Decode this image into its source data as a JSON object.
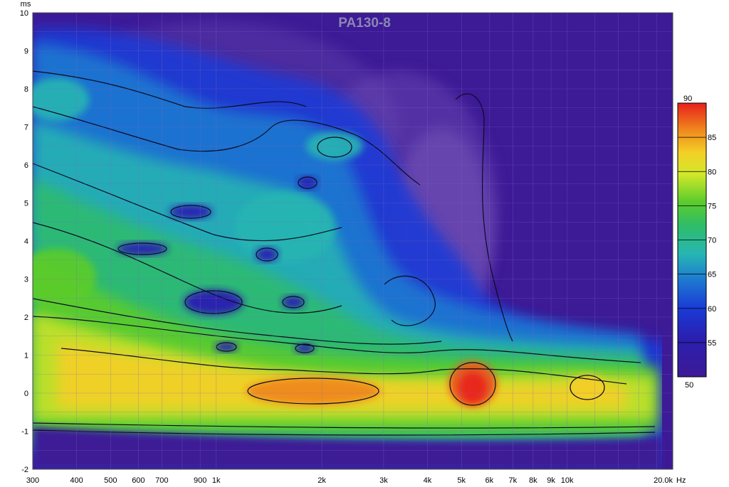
{
  "chart_data": {
    "type": "heatmap",
    "title": "PA130-8",
    "x_unit": "Hz",
    "y_unit": "ms",
    "x_scale": "log",
    "xlim": [
      300,
      20000
    ],
    "ylim": [
      -2,
      10
    ],
    "x_ticks": [
      {
        "v": 300,
        "t": "300"
      },
      {
        "v": 400,
        "t": "400"
      },
      {
        "v": 500,
        "t": "500"
      },
      {
        "v": 600,
        "t": "600"
      },
      {
        "v": 700,
        "t": "700"
      },
      {
        "v": 900,
        "t": "900"
      },
      {
        "v": 1000,
        "t": "1k"
      },
      {
        "v": 2000,
        "t": "2k"
      },
      {
        "v": 3000,
        "t": "3k"
      },
      {
        "v": 4000,
        "t": "4k"
      },
      {
        "v": 5000,
        "t": "5k"
      },
      {
        "v": 6000,
        "t": "6k"
      },
      {
        "v": 7000,
        "t": "7k"
      },
      {
        "v": 8000,
        "t": "8k"
      },
      {
        "v": 9000,
        "t": "9k"
      },
      {
        "v": 10000,
        "t": "10k"
      },
      {
        "v": 20000,
        "t": "20.0k"
      }
    ],
    "y_ticks": [
      -2,
      -1,
      0,
      1,
      2,
      3,
      4,
      5,
      6,
      7,
      8,
      9,
      10
    ],
    "colorbar": {
      "min": 50,
      "max": 90,
      "ticks": [
        55,
        60,
        65,
        70,
        75,
        80,
        85
      ],
      "top_label": "90",
      "bottom_label": "50"
    },
    "grid": true,
    "background": "#3d1a96",
    "features": [
      {
        "f": 2400,
        "t": 0.1,
        "level": 86,
        "note": "main ridge peak"
      },
      {
        "f": 5500,
        "t": 0.2,
        "level": 89,
        "note": "resonance peak"
      },
      {
        "f": 12500,
        "t": 0.25,
        "level": 82,
        "note": "upper peak"
      },
      {
        "f": 310,
        "t": 7.5,
        "level": 68,
        "note": "low frequency tail"
      },
      {
        "f": 2000,
        "t": 6.5,
        "level": 65,
        "note": "delayed island"
      }
    ]
  }
}
